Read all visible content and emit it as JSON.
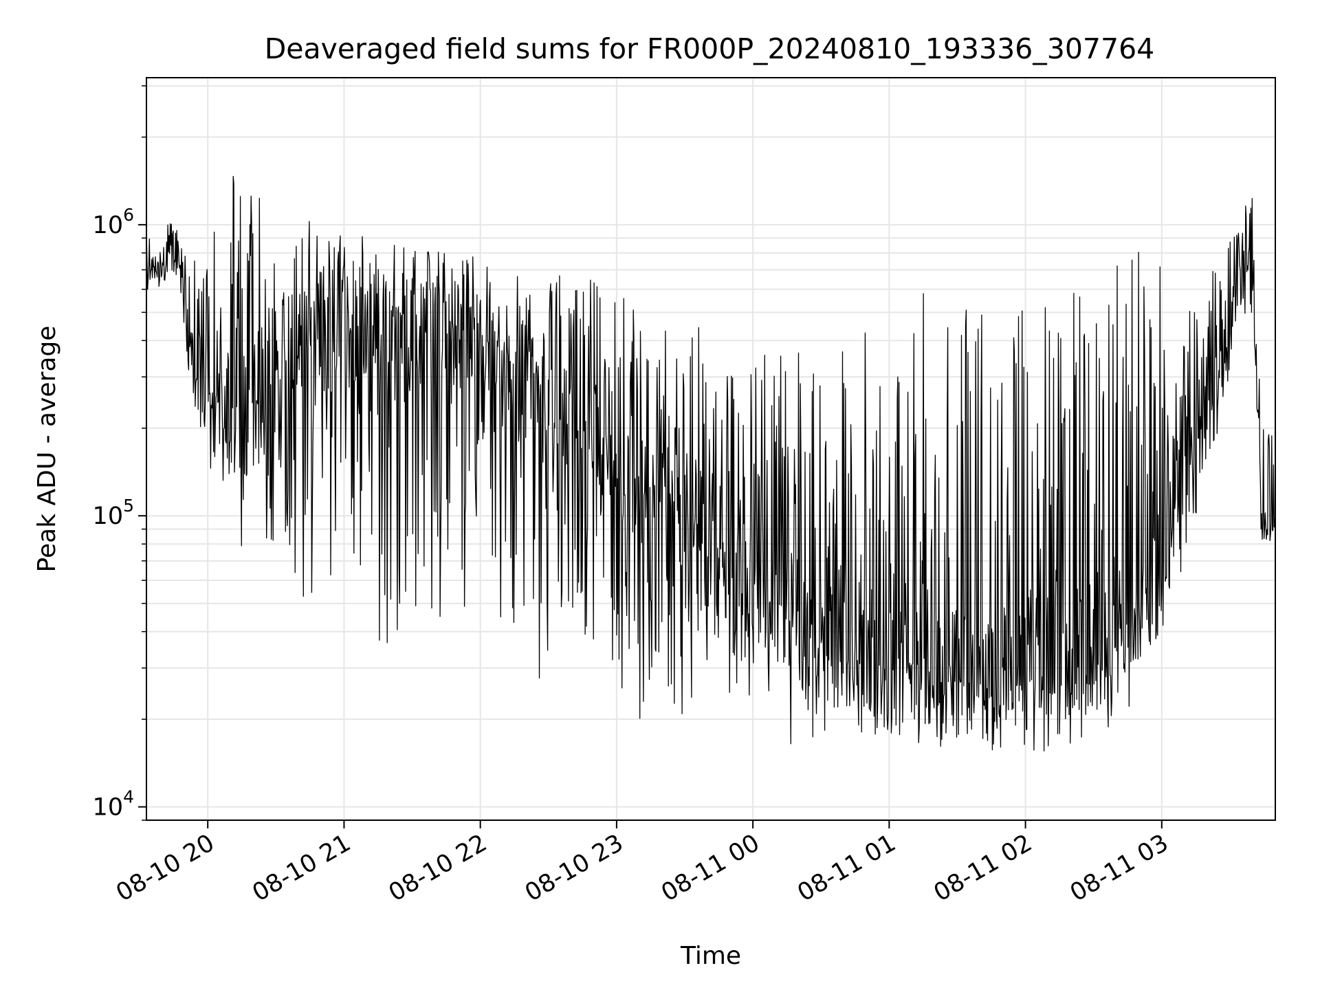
{
  "chart_data": {
    "type": "line",
    "title": "Deaveraged field sums for FR000P_20240810_193336_307764",
    "xlabel": "Time",
    "ylabel": "Peak ADU - average",
    "yscale": "log",
    "ylim": [
      9000,
      3200000
    ],
    "xlim": [
      "2024-08-10 19:33",
      "2024-08-11 03:50"
    ],
    "grid": true,
    "line_color": "#000000",
    "y_ticks": [
      {
        "base": "10",
        "exp": "4",
        "value": 10000
      },
      {
        "base": "10",
        "exp": "5",
        "value": 100000
      },
      {
        "base": "10",
        "exp": "6",
        "value": 1000000
      }
    ],
    "x_ticks": [
      {
        "label": "08-10 20",
        "value": "2024-08-10 20:00"
      },
      {
        "label": "08-10 21",
        "value": "2024-08-10 21:00"
      },
      {
        "label": "08-10 22",
        "value": "2024-08-10 22:00"
      },
      {
        "label": "08-10 23",
        "value": "2024-08-10 23:00"
      },
      {
        "label": "08-11 00",
        "value": "2024-08-11 00:00"
      },
      {
        "label": "08-11 01",
        "value": "2024-08-11 01:00"
      },
      {
        "label": "08-11 02",
        "value": "2024-08-11 02:00"
      },
      {
        "label": "08-11 03",
        "value": "2024-08-11 03:00"
      }
    ],
    "envelope": {
      "x": [
        "2024-08-10 19:33",
        "2024-08-10 19:48",
        "2024-08-10 19:52",
        "2024-08-10 20:10",
        "2024-08-10 20:30",
        "2024-08-10 20:50",
        "2024-08-10 21:20",
        "2024-08-10 21:50",
        "2024-08-10 22:20",
        "2024-08-10 22:50",
        "2024-08-10 23:20",
        "2024-08-10 23:50",
        "2024-08-11 00:20",
        "2024-08-11 00:50",
        "2024-08-11 01:20",
        "2024-08-11 01:50",
        "2024-08-11 02:20",
        "2024-08-11 02:40",
        "2024-08-11 02:55",
        "2024-08-11 03:10",
        "2024-08-11 03:25",
        "2024-08-11 03:35",
        "2024-08-11 03:40",
        "2024-08-11 03:44",
        "2024-08-11 03:50"
      ],
      "base": [
        700000,
        760000,
        350000,
        220000,
        300000,
        420000,
        420000,
        380000,
        300000,
        180000,
        100000,
        75000,
        45000,
        35000,
        30000,
        27000,
        30000,
        40000,
        55000,
        150000,
        300000,
        600000,
        700000,
        90000,
        100000
      ],
      "low": [
        550000,
        600000,
        160000,
        90000,
        50000,
        40000,
        35000,
        40000,
        28000,
        22000,
        18000,
        17000,
        16000,
        16000,
        16000,
        15000,
        16000,
        18000,
        28000,
        70000,
        180000,
        400000,
        450000,
        70000,
        80000
      ],
      "high": [
        950000,
        1050000,
        700000,
        1500000,
        1200000,
        1000000,
        900000,
        800000,
        700000,
        650000,
        500000,
        400000,
        380000,
        550000,
        600000,
        550000,
        650000,
        900000,
        800000,
        600000,
        750000,
        1200000,
        1300000,
        200000,
        200000
      ]
    },
    "samples": 1900,
    "seed": 20240810
  }
}
